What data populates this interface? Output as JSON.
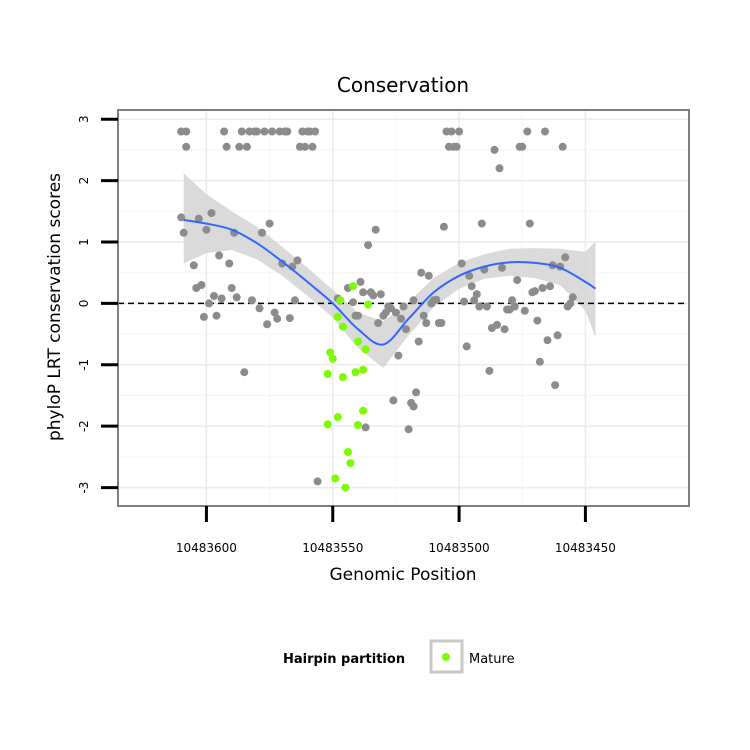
{
  "chart_data": {
    "type": "scatter",
    "title": "Conservation",
    "xlabel": "Genomic Position",
    "ylabel": "phyloP LRT conservation scores",
    "x_reversed": true,
    "xlim": [
      10483409,
      10483635
    ],
    "ylim": [
      -3.3,
      3.15
    ],
    "xticks": [
      10483600,
      10483550,
      10483500,
      10483450
    ],
    "yticks": [
      -3,
      -2,
      -1,
      0,
      1,
      2,
      3
    ],
    "grid": true,
    "reference_line": {
      "y": 0,
      "style": "dashed"
    },
    "legend": {
      "title": "Hairpin partition",
      "entries": [
        {
          "label": "Mature",
          "color": "#7cfc00"
        }
      ],
      "position": "bottom"
    },
    "colors": {
      "background": "#ffffff",
      "gray_points": "#8c8c8c",
      "mature_points": "#7cfc00",
      "smooth_line": "#3366ff",
      "confidence_band": "#d3d3d3",
      "panel_border": "#7f7f7f",
      "grid": "#ececec"
    },
    "smooth": {
      "x": [
        10483609,
        10483600,
        10483590,
        10483580,
        10483570,
        10483560,
        10483550,
        10483540,
        10483530,
        10483520,
        10483510,
        10483500,
        10483490,
        10483480,
        10483470,
        10483460,
        10483450,
        10483446
      ],
      "y": [
        1.36,
        1.3,
        1.2,
        0.98,
        0.68,
        0.35,
        0.0,
        -0.42,
        -0.67,
        -0.25,
        0.18,
        0.45,
        0.6,
        0.67,
        0.66,
        0.58,
        0.35,
        0.24
      ],
      "lower": [
        0.65,
        0.82,
        0.87,
        0.72,
        0.45,
        0.12,
        -0.23,
        -0.73,
        -1.05,
        -0.52,
        -0.06,
        0.24,
        0.4,
        0.45,
        0.41,
        0.3,
        -0.12,
        -0.55
      ],
      "upper": [
        2.12,
        1.78,
        1.5,
        1.25,
        0.92,
        0.58,
        0.22,
        -0.15,
        -0.29,
        0.02,
        0.42,
        0.66,
        0.8,
        0.89,
        0.9,
        0.89,
        0.84,
        1.01
      ]
    },
    "series": [
      {
        "name": "Other",
        "color": "#8c8c8c",
        "points": [
          [
            10483610,
            2.8
          ],
          [
            10483608,
            2.8
          ],
          [
            10483608,
            2.55
          ],
          [
            10483605,
            0.62
          ],
          [
            10483604,
            0.25
          ],
          [
            10483603,
            1.38
          ],
          [
            10483610,
            1.4
          ],
          [
            10483609,
            1.15
          ],
          [
            10483602,
            0.3
          ],
          [
            10483601,
            -0.22
          ],
          [
            10483600,
            1.2
          ],
          [
            10483599,
            0.0
          ],
          [
            10483598,
            1.47
          ],
          [
            10483597,
            0.12
          ],
          [
            10483596,
            -0.2
          ],
          [
            10483595,
            0.78
          ],
          [
            10483594,
            0.08
          ],
          [
            10483593,
            2.8
          ],
          [
            10483592,
            2.55
          ],
          [
            10483591,
            0.65
          ],
          [
            10483590,
            0.25
          ],
          [
            10483589,
            1.15
          ],
          [
            10483588,
            0.1
          ],
          [
            10483587,
            2.55
          ],
          [
            10483586,
            2.8
          ],
          [
            10483585,
            -1.12
          ],
          [
            10483584,
            2.55
          ],
          [
            10483583,
            2.8
          ],
          [
            10483582,
            0.05
          ],
          [
            10483581,
            2.8
          ],
          [
            10483580,
            2.8
          ],
          [
            10483579,
            -0.08
          ],
          [
            10483578,
            1.15
          ],
          [
            10483577,
            2.8
          ],
          [
            10483576,
            -0.34
          ],
          [
            10483575,
            1.3
          ],
          [
            10483574,
            2.8
          ],
          [
            10483573,
            -0.15
          ],
          [
            10483572,
            -0.25
          ],
          [
            10483571,
            2.8
          ],
          [
            10483570,
            0.65
          ],
          [
            10483569,
            2.8
          ],
          [
            10483568,
            2.8
          ],
          [
            10483567,
            -0.24
          ],
          [
            10483566,
            0.6
          ],
          [
            10483565,
            0.05
          ],
          [
            10483564,
            0.7
          ],
          [
            10483563,
            2.55
          ],
          [
            10483562,
            2.8
          ],
          [
            10483561,
            2.55
          ],
          [
            10483560,
            2.8
          ],
          [
            10483559,
            2.8
          ],
          [
            10483558,
            2.55
          ],
          [
            10483557,
            2.8
          ],
          [
            10483556,
            -2.9
          ],
          [
            10483548,
            0.08
          ],
          [
            10483544,
            0.25
          ],
          [
            10483542,
            0.02
          ],
          [
            10483541,
            -0.2
          ],
          [
            10483540,
            -0.2
          ],
          [
            10483539,
            0.35
          ],
          [
            10483538,
            0.18
          ],
          [
            10483537,
            -2.02
          ],
          [
            10483536,
            0.95
          ],
          [
            10483535,
            0.18
          ],
          [
            10483534,
            0.13
          ],
          [
            10483533,
            1.2
          ],
          [
            10483532,
            -0.32
          ],
          [
            10483531,
            0.15
          ],
          [
            10483530,
            -0.2
          ],
          [
            10483529,
            -0.15
          ],
          [
            10483528,
            -0.05
          ],
          [
            10483527,
            -0.08
          ],
          [
            10483526,
            -1.58
          ],
          [
            10483525,
            -0.15
          ],
          [
            10483524,
            -0.85
          ],
          [
            10483523,
            -0.25
          ],
          [
            10483522,
            -0.05
          ],
          [
            10483521,
            -0.42
          ],
          [
            10483520,
            -2.05
          ],
          [
            10483519,
            -1.62
          ],
          [
            10483518,
            0.05
          ],
          [
            10483518,
            -1.68
          ],
          [
            10483517,
            -1.45
          ],
          [
            10483516,
            -0.62
          ],
          [
            10483515,
            0.5
          ],
          [
            10483514,
            -0.2
          ],
          [
            10483513,
            -0.32
          ],
          [
            10483512,
            0.45
          ],
          [
            10483511,
            0.0
          ],
          [
            10483510,
            0.05
          ],
          [
            10483509,
            0.06
          ],
          [
            10483508,
            -0.32
          ],
          [
            10483507,
            -0.32
          ],
          [
            10483506,
            1.25
          ],
          [
            10483505,
            2.8
          ],
          [
            10483504,
            2.55
          ],
          [
            10483503,
            2.8
          ],
          [
            10483502,
            2.55
          ],
          [
            10483501,
            2.55
          ],
          [
            10483500,
            2.8
          ],
          [
            10483499,
            0.65
          ],
          [
            10483498,
            0.03
          ],
          [
            10483497,
            -0.7
          ],
          [
            10483496,
            0.45
          ],
          [
            10483495,
            0.28
          ],
          [
            10483494,
            0.05
          ],
          [
            10483493,
            0.15
          ],
          [
            10483492,
            -0.05
          ],
          [
            10483491,
            1.3
          ],
          [
            10483490,
            0.55
          ],
          [
            10483489,
            -0.05
          ],
          [
            10483488,
            -1.1
          ],
          [
            10483487,
            -0.4
          ],
          [
            10483486,
            2.5
          ],
          [
            10483485,
            -0.35
          ],
          [
            10483484,
            2.2
          ],
          [
            10483483,
            0.58
          ],
          [
            10483482,
            -0.42
          ],
          [
            10483481,
            -0.1
          ],
          [
            10483480,
            -0.1
          ],
          [
            10483479,
            0.05
          ],
          [
            10483478,
            -0.05
          ],
          [
            10483477,
            0.38
          ],
          [
            10483476,
            2.55
          ],
          [
            10483475,
            2.55
          ],
          [
            10483474,
            -0.12
          ],
          [
            10483473,
            2.8
          ],
          [
            10483472,
            1.3
          ],
          [
            10483471,
            0.18
          ],
          [
            10483470,
            0.2
          ],
          [
            10483469,
            -0.28
          ],
          [
            10483468,
            -0.95
          ],
          [
            10483467,
            0.25
          ],
          [
            10483466,
            2.8
          ],
          [
            10483465,
            -0.6
          ],
          [
            10483464,
            0.28
          ],
          [
            10483463,
            0.62
          ],
          [
            10483462,
            -1.33
          ],
          [
            10483461,
            -0.52
          ],
          [
            10483460,
            0.6
          ],
          [
            10483459,
            2.55
          ],
          [
            10483458,
            0.75
          ],
          [
            10483457,
            -0.05
          ],
          [
            10483456,
            0.0
          ],
          [
            10483455,
            0.1
          ]
        ]
      },
      {
        "name": "Mature",
        "color": "#7cfc00",
        "points": [
          [
            10483551,
            -0.8
          ],
          [
            10483550,
            -0.9
          ],
          [
            10483552,
            -1.15
          ],
          [
            10483548,
            -0.22
          ],
          [
            10483547,
            0.05
          ],
          [
            10483546,
            -0.38
          ],
          [
            10483546,
            -1.2
          ],
          [
            10483548,
            -1.85
          ],
          [
            10483552,
            -1.97
          ],
          [
            10483549,
            -2.85
          ],
          [
            10483545,
            -3.0
          ],
          [
            10483544,
            -2.42
          ],
          [
            10483543,
            -2.6
          ],
          [
            10483542,
            0.28
          ],
          [
            10483541,
            -1.12
          ],
          [
            10483540,
            -0.62
          ],
          [
            10483540,
            -1.98
          ],
          [
            10483538,
            -1.75
          ],
          [
            10483538,
            -1.08
          ],
          [
            10483537,
            -0.75
          ],
          [
            10483536,
            -0.02
          ]
        ]
      }
    ]
  }
}
